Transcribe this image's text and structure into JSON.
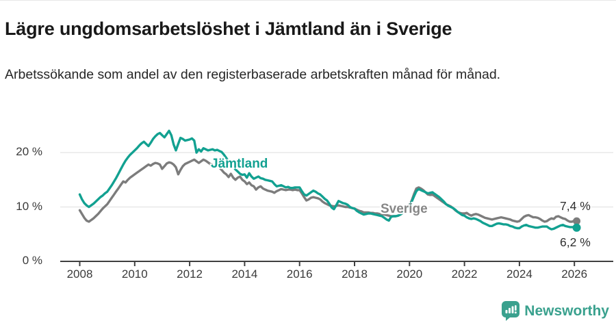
{
  "header": {
    "title": "Lägre ungdomsarbetslöshet i Jämtland än i Sverige",
    "subtitle": "Arbetssökande som andel av den registerbaserade arbetskraften månad för månad."
  },
  "chart_data": {
    "type": "line",
    "title": "Lägre ungdomsarbetslöshet i Jämtland än i Sverige",
    "subtitle": "Arbetssökande som andel av den registerbaserade arbetskraften månad för månad.",
    "unit": "%",
    "x_start_year": 2008,
    "x_frequency": "monthly",
    "x_tick_years": [
      2008,
      2010,
      2012,
      2014,
      2016,
      2018,
      2020,
      2022,
      2024,
      2026
    ],
    "ylim": [
      0,
      27.8
    ],
    "yticks": [
      {
        "value": 0,
        "label": "0 %"
      },
      {
        "value": 10,
        "label": "10 %"
      },
      {
        "value": 20,
        "label": "20 %"
      }
    ],
    "grid": "horizontal",
    "legend_position": "inline-labels",
    "series": [
      {
        "name": "Sverige",
        "color": "#7c7c7c",
        "end_value": 7.4,
        "end_label": "7,4 %",
        "values": [
          9.4,
          8.7,
          8.0,
          7.5,
          7.3,
          7.6,
          7.9,
          8.3,
          8.7,
          9.2,
          9.7,
          10.1,
          10.5,
          11.1,
          11.7,
          12.3,
          12.9,
          13.5,
          14.1,
          14.7,
          14.5,
          15.0,
          15.4,
          15.7,
          16.0,
          16.3,
          16.6,
          16.9,
          17.2,
          17.5,
          17.8,
          17.6,
          17.9,
          18.1,
          18.0,
          17.8,
          17.0,
          17.5,
          18.0,
          18.2,
          18.1,
          17.8,
          17.3,
          16.0,
          16.8,
          17.5,
          17.9,
          18.1,
          18.3,
          18.5,
          18.7,
          18.4,
          18.1,
          18.4,
          18.7,
          18.5,
          18.2,
          17.9,
          17.7,
          17.6,
          17.5,
          17.2,
          16.8,
          16.3,
          16.0,
          15.5,
          16.1,
          15.4,
          15.0,
          15.4,
          15.6,
          15.0,
          14.7,
          14.2,
          14.5,
          14.0,
          13.8,
          13.2,
          13.6,
          13.8,
          13.4,
          13.2,
          13.0,
          12.9,
          12.8,
          12.6,
          12.9,
          13.1,
          13.3,
          13.2,
          13.1,
          13.2,
          13.2,
          13.1,
          13.2,
          13.1,
          13.1,
          12.5,
          11.8,
          11.2,
          11.4,
          11.7,
          11.8,
          11.7,
          11.6,
          11.4,
          11.0,
          10.7,
          10.5,
          10.3,
          10.2,
          10.1,
          10.2,
          10.3,
          10.2,
          10.1,
          10.0,
          10.0,
          9.9,
          9.8,
          9.7,
          9.5,
          9.3,
          9.2,
          9.0,
          9.0,
          9.0,
          8.9,
          8.9,
          8.8,
          8.8,
          8.7,
          8.7,
          8.6,
          8.5,
          8.4,
          8.3,
          8.3,
          8.3,
          8.4,
          8.6,
          8.9,
          9.3,
          9.8,
          10.4,
          11.2,
          12.4,
          13.4,
          13.6,
          13.4,
          13.1,
          12.7,
          12.3,
          12.2,
          12.3,
          12.0,
          11.7,
          11.4,
          11.1,
          10.8,
          10.5,
          10.3,
          10.1,
          9.8,
          9.4,
          9.1,
          8.9,
          8.8,
          8.8,
          8.9,
          8.6,
          8.4,
          8.6,
          8.7,
          8.6,
          8.4,
          8.2,
          8.0,
          7.9,
          7.8,
          7.7,
          7.8,
          7.9,
          8.0,
          8.1,
          8.0,
          7.9,
          7.8,
          7.7,
          7.5,
          7.4,
          7.3,
          7.4,
          7.8,
          8.2,
          8.4,
          8.5,
          8.3,
          8.1,
          8.1,
          8.0,
          7.8,
          7.5,
          7.3,
          7.4,
          7.7,
          7.9,
          7.8,
          8.2,
          8.3,
          8.1,
          7.9,
          7.8,
          7.5,
          7.3,
          7.3,
          7.5,
          7.4
        ]
      },
      {
        "name": "Jämtland",
        "color": "#12a191",
        "end_value": 6.2,
        "end_label": "6,2 %",
        "values": [
          12.3,
          11.4,
          10.7,
          10.3,
          10.0,
          10.3,
          10.6,
          11.0,
          11.4,
          11.8,
          12.1,
          12.5,
          12.8,
          13.4,
          14.0,
          14.7,
          15.4,
          16.2,
          17.0,
          17.8,
          18.5,
          19.1,
          19.6,
          20.0,
          20.4,
          20.8,
          21.3,
          21.7,
          22.0,
          21.6,
          21.2,
          21.8,
          22.5,
          23.0,
          23.4,
          23.6,
          23.2,
          22.8,
          23.4,
          24.0,
          23.2,
          21.5,
          20.4,
          21.6,
          22.7,
          22.5,
          22.2,
          22.3,
          22.4,
          22.6,
          22.2,
          20.0,
          20.6,
          20.2,
          20.8,
          20.6,
          20.4,
          20.5,
          20.6,
          20.4,
          20.5,
          20.3,
          20.1,
          19.6,
          19.0,
          18.4,
          17.9,
          17.4,
          16.9,
          16.5,
          16.1,
          15.9,
          16.0,
          15.4,
          16.2,
          15.6,
          15.2,
          15.4,
          15.6,
          15.3,
          15.2,
          15.0,
          14.9,
          14.8,
          14.7,
          14.2,
          13.8,
          13.9,
          14.0,
          13.8,
          13.6,
          13.7,
          13.5,
          13.5,
          13.6,
          13.6,
          13.6,
          12.9,
          12.3,
          12.1,
          12.4,
          12.7,
          13.0,
          12.8,
          12.5,
          12.3,
          11.9,
          11.5,
          11.2,
          10.6,
          9.9,
          9.6,
          10.3,
          11.1,
          10.9,
          10.7,
          10.6,
          10.4,
          10.0,
          9.8,
          9.7,
          9.3,
          9.0,
          8.8,
          8.6,
          8.7,
          8.8,
          8.8,
          8.7,
          8.6,
          8.5,
          8.4,
          8.3,
          8.0,
          7.7,
          7.5,
          8.2,
          8.3,
          8.3,
          8.4,
          8.6,
          8.9,
          9.3,
          9.7,
          10.2,
          11.0,
          12.0,
          12.9,
          13.3,
          13.1,
          12.9,
          12.7,
          12.5,
          12.6,
          12.7,
          12.4,
          12.1,
          11.8,
          11.4,
          11.0,
          10.5,
          10.2,
          10.0,
          9.8,
          9.5,
          9.1,
          8.8,
          8.5,
          8.4,
          8.1,
          7.9,
          7.8,
          7.9,
          7.8,
          7.6,
          7.4,
          7.1,
          6.9,
          6.7,
          6.5,
          6.5,
          6.7,
          6.9,
          7.0,
          6.9,
          6.8,
          6.8,
          6.7,
          6.5,
          6.4,
          6.2,
          6.1,
          6.1,
          6.4,
          6.6,
          6.7,
          6.5,
          6.4,
          6.3,
          6.2,
          6.2,
          6.3,
          6.4,
          6.4,
          6.4,
          6.1,
          5.9,
          6.0,
          6.2,
          6.4,
          6.6,
          6.7,
          6.5,
          6.4,
          6.3,
          6.3,
          6.3,
          6.2
        ]
      }
    ],
    "annotations": {
      "series_label_jamtland": "Jämtland",
      "series_label_sverige": "Sverige",
      "end_label_sverige": "7,4 %",
      "end_label_jamtland": "6,2 %"
    }
  },
  "colors": {
    "jamtland_teal": "#12a191",
    "sverige_gray": "#7c7c7c",
    "gridline": "#e4e4e4",
    "axis": "#3f3f3f",
    "brand_teal": "#3aa18e"
  },
  "footer": {
    "brand": "Newsworthy"
  }
}
